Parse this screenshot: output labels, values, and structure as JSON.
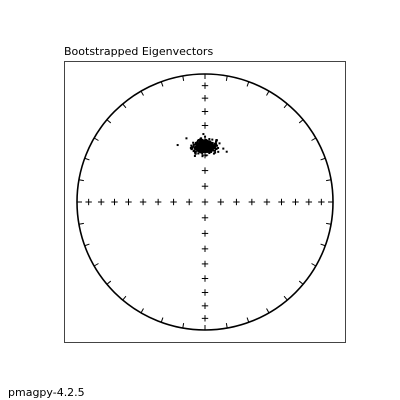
{
  "figure": {
    "footer_text": "pmagpy-4.2.5"
  },
  "chart_data": {
    "type": "scatter",
    "title": "Bootstrapped Eigenvectors",
    "xlabel": "",
    "ylabel": "",
    "projection": "equal-area stereonet",
    "grid": false,
    "primitive_tick_interval_deg": 10,
    "crosshair_tick_interval_deg": 10,
    "series": [
      {
        "marker": "point",
        "color": "#000000",
        "center": {
          "dec": 0,
          "inc": 54
        },
        "spread_deg": {
          "dec": 6,
          "inc": 2
        },
        "count": 500,
        "random_seed": 7
      }
    ]
  }
}
